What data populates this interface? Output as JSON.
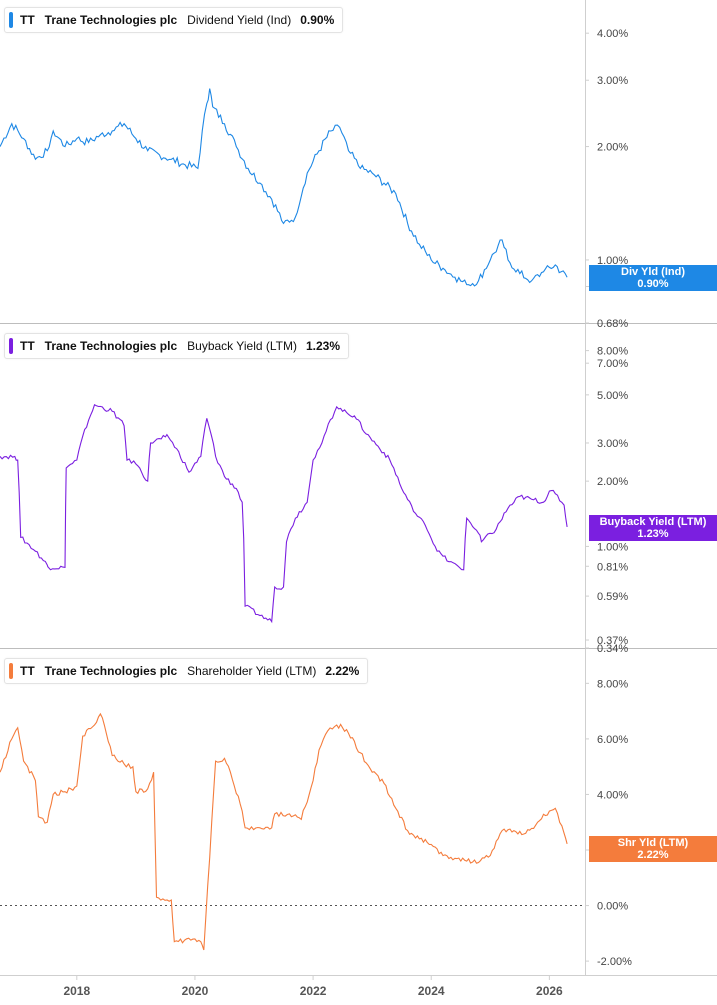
{
  "panels": [
    {
      "ticker": "TT",
      "company": "Trane Technologies plc",
      "metric": "Dividend Yield (Ind)",
      "value": "0.90%",
      "tag_label": "Div Yld (Ind)",
      "tag_value": "0.90%",
      "color": "#1e88e5"
    },
    {
      "ticker": "TT",
      "company": "Trane Technologies plc",
      "metric": "Buyback Yield (LTM)",
      "value": "1.23%",
      "tag_label": "Buyback Yield (LTM)",
      "tag_value": "1.23%",
      "color": "#7b1fe0"
    },
    {
      "ticker": "TT",
      "company": "Trane Technologies plc",
      "metric": "Shareholder Yield (LTM)",
      "value": "2.22%",
      "tag_label": "Shr Yld (LTM)",
      "tag_value": "2.22%",
      "color": "#f47c3c"
    }
  ],
  "chart_data": [
    {
      "type": "line",
      "scale": "log",
      "name": "Dividend Yield (Ind)",
      "yticks": [
        "4.00%",
        "3.00%",
        "2.00%",
        "1.00%",
        "0.85%",
        "0.68%"
      ],
      "ytick_values": [
        4.0,
        3.0,
        2.0,
        1.0,
        0.85,
        0.68
      ],
      "ylim": [
        0.68,
        4.9
      ],
      "xlim": [
        2016.7,
        2026.4
      ],
      "x": [
        2016.7,
        2016.9,
        2017.1,
        2017.3,
        2017.5,
        2017.6,
        2017.8,
        2018.0,
        2018.2,
        2018.4,
        2018.6,
        2018.8,
        2019.0,
        2019.2,
        2019.4,
        2019.6,
        2019.8,
        2020.05,
        2020.2,
        2020.25,
        2020.3,
        2020.5,
        2020.7,
        2020.9,
        2021.1,
        2021.3,
        2021.5,
        2021.7,
        2021.9,
        2022.1,
        2022.3,
        2022.45,
        2022.6,
        2022.8,
        2023.0,
        2023.2,
        2023.4,
        2023.6,
        2023.8,
        2024.0,
        2024.2,
        2024.4,
        2024.6,
        2024.8,
        2025.0,
        2025.2,
        2025.3,
        2025.5,
        2025.7,
        2025.9,
        2026.1,
        2026.2,
        2026.3
      ],
      "y": [
        2.0,
        2.3,
        2.1,
        1.85,
        1.95,
        2.2,
        2.0,
        2.1,
        2.05,
        2.15,
        2.2,
        2.3,
        2.1,
        1.95,
        1.9,
        1.85,
        1.8,
        1.75,
        2.6,
        2.85,
        2.55,
        2.3,
        2.0,
        1.75,
        1.6,
        1.45,
        1.25,
        1.3,
        1.7,
        1.95,
        2.2,
        2.25,
        1.95,
        1.75,
        1.7,
        1.6,
        1.5,
        1.25,
        1.1,
        1.0,
        0.95,
        0.9,
        0.86,
        0.88,
        1.0,
        1.13,
        1.0,
        0.92,
        0.88,
        0.93,
        0.97,
        0.93,
        0.9
      ]
    },
    {
      "type": "line",
      "scale": "log",
      "name": "Buyback Yield (LTM)",
      "yticks": [
        "8.00%",
        "7.00%",
        "5.00%",
        "3.00%",
        "2.00%",
        "1.00%",
        "0.81%",
        "0.59%",
        "0.37%",
        "0.34%"
      ],
      "ytick_values": [
        8.0,
        7.0,
        5.0,
        3.0,
        2.0,
        1.0,
        0.81,
        0.59,
        0.37,
        0.34
      ],
      "ylim": [
        0.34,
        10.5
      ],
      "xlim": [
        2016.7,
        2026.4
      ],
      "x": [
        2016.7,
        2016.95,
        2017.0,
        2017.05,
        2017.3,
        2017.5,
        2017.52,
        2017.8,
        2017.82,
        2018.0,
        2018.3,
        2018.6,
        2018.8,
        2018.85,
        2019.0,
        2019.2,
        2019.25,
        2019.5,
        2019.55,
        2019.9,
        2020.1,
        2020.2,
        2020.35,
        2020.5,
        2020.7,
        2020.8,
        2020.85,
        2021.1,
        2021.3,
        2021.35,
        2021.5,
        2021.55,
        2021.7,
        2021.9,
        2022.0,
        2022.15,
        2022.4,
        2022.5,
        2022.7,
        2022.9,
        2023.1,
        2023.3,
        2023.5,
        2023.7,
        2023.9,
        2024.1,
        2024.3,
        2024.55,
        2024.6,
        2024.8,
        2024.85,
        2025.1,
        2025.3,
        2025.5,
        2025.7,
        2025.9,
        2026.0,
        2026.1,
        2026.25,
        2026.3
      ],
      "y": [
        2.6,
        2.6,
        2.5,
        1.1,
        0.95,
        0.82,
        0.8,
        0.8,
        2.3,
        2.5,
        4.5,
        4.2,
        3.6,
        2.5,
        2.4,
        2.0,
        3.0,
        3.2,
        3.2,
        2.2,
        2.6,
        3.9,
        2.6,
        2.1,
        1.85,
        1.6,
        0.53,
        0.48,
        0.45,
        0.65,
        0.65,
        1.05,
        1.35,
        1.6,
        2.5,
        3.0,
        4.4,
        4.2,
        4.0,
        3.3,
        2.9,
        2.5,
        1.85,
        1.45,
        1.25,
        0.95,
        0.85,
        0.78,
        1.35,
        1.15,
        1.05,
        1.2,
        1.5,
        1.7,
        1.65,
        1.6,
        1.8,
        1.75,
        1.55,
        1.23
      ]
    },
    {
      "type": "line",
      "scale": "linear",
      "name": "Shareholder Yield (LTM)",
      "yticks": [
        "8.00%",
        "6.00%",
        "4.00%",
        "2.00%",
        "0.00%",
        "-2.00%"
      ],
      "ytick_values": [
        8.0,
        6.0,
        4.0,
        2.0,
        0.0,
        -2.0
      ],
      "ylim": [
        -2.5,
        9.2
      ],
      "xlim": [
        2016.7,
        2026.4
      ],
      "zero_line": true,
      "x": [
        2016.7,
        2016.9,
        2017.0,
        2017.1,
        2017.3,
        2017.35,
        2017.5,
        2017.6,
        2017.8,
        2018.0,
        2018.1,
        2018.3,
        2018.4,
        2018.5,
        2018.6,
        2018.8,
        2018.95,
        2019.0,
        2019.2,
        2019.3,
        2019.35,
        2019.6,
        2019.65,
        2020.0,
        2020.1,
        2020.15,
        2020.35,
        2020.5,
        2020.6,
        2020.8,
        2020.85,
        2021.1,
        2021.3,
        2021.35,
        2021.6,
        2021.8,
        2022.0,
        2022.1,
        2022.25,
        2022.4,
        2022.5,
        2022.6,
        2022.8,
        2023.0,
        2023.2,
        2023.4,
        2023.6,
        2023.8,
        2024.0,
        2024.2,
        2024.4,
        2024.6,
        2024.8,
        2025.0,
        2025.2,
        2025.4,
        2025.6,
        2025.8,
        2026.0,
        2026.1,
        2026.25,
        2026.3
      ],
      "y": [
        4.8,
        6.0,
        6.4,
        5.2,
        4.5,
        3.2,
        3.0,
        4.0,
        4.1,
        4.3,
        6.1,
        6.5,
        6.9,
        6.2,
        5.4,
        5.1,
        5.0,
        4.1,
        4.2,
        4.8,
        0.3,
        0.2,
        -1.3,
        -1.2,
        -1.3,
        -1.6,
        5.2,
        5.3,
        4.8,
        3.4,
        2.8,
        2.8,
        2.8,
        3.3,
        3.3,
        3.1,
        4.5,
        5.6,
        6.3,
        6.5,
        6.4,
        6.2,
        5.5,
        4.8,
        4.4,
        3.5,
        2.7,
        2.4,
        2.2,
        1.8,
        1.7,
        1.6,
        1.55,
        1.8,
        2.7,
        2.7,
        2.6,
        3.0,
        3.4,
        3.5,
        2.6,
        2.22
      ]
    }
  ],
  "xaxis": {
    "ticks": [
      "2018",
      "2020",
      "2022",
      "2024",
      "2026"
    ],
    "tick_values": [
      2018,
      2020,
      2022,
      2024,
      2026
    ]
  }
}
